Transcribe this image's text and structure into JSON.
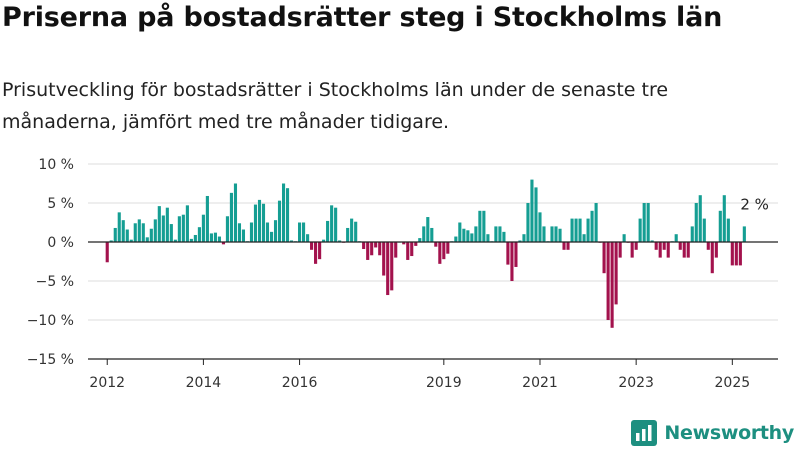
{
  "title": "Priserna på bostadsrätter steg i Stockholms län",
  "subtitle": "Prisutveckling för bostadsrätter i Stockholms län under de senaste tre månaderna, jämfört med tre månader tidigare.",
  "brand": {
    "name": "Newsworthy",
    "logo_icon": "bar-chart-logo-icon"
  },
  "colors": {
    "positive": "#159e93",
    "negative": "#a3124d",
    "grid": "#dddddd",
    "axis": "#222222",
    "brand": "#1d8f80"
  },
  "chart_data": {
    "type": "bar",
    "x_ticks": [
      {
        "x": 2012,
        "label": "2012"
      },
      {
        "x": 2014,
        "label": "2014"
      },
      {
        "x": 2016,
        "label": "2016"
      },
      {
        "x": 2019,
        "label": "2019"
      },
      {
        "x": 2021,
        "label": "2021"
      },
      {
        "x": 2023,
        "label": "2023"
      },
      {
        "x": 2025,
        "label": "2025"
      }
    ],
    "y_ticks": [
      {
        "v": 10,
        "label": "10 %"
      },
      {
        "v": 5,
        "label": "5 %"
      },
      {
        "v": 0,
        "label": "0 %"
      },
      {
        "v": -5,
        "label": "−5 %"
      },
      {
        "v": -10,
        "label": "−10 %"
      },
      {
        "v": -15,
        "label": "−15 %"
      }
    ],
    "ylim": [
      -15,
      10
    ],
    "xlim": [
      2011.6,
      2025.95
    ],
    "grid": true,
    "annotation": {
      "x": 2025.25,
      "y": 2,
      "label": "2 %"
    },
    "x": [
      2012,
      2012.083,
      2012.167,
      2012.25,
      2012.333,
      2012.417,
      2012.5,
      2012.583,
      2012.667,
      2012.75,
      2012.833,
      2012.917,
      2013,
      2013.083,
      2013.167,
      2013.25,
      2013.333,
      2013.417,
      2013.5,
      2013.583,
      2013.667,
      2013.75,
      2013.833,
      2013.917,
      2014,
      2014.083,
      2014.167,
      2014.25,
      2014.333,
      2014.417,
      2014.5,
      2014.583,
      2014.667,
      2014.75,
      2014.833,
      2014.917,
      2015,
      2015.083,
      2015.167,
      2015.25,
      2015.333,
      2015.417,
      2015.5,
      2015.583,
      2015.667,
      2015.75,
      2015.833,
      2015.917,
      2016,
      2016.083,
      2016.167,
      2016.25,
      2016.333,
      2016.417,
      2016.5,
      2016.583,
      2016.667,
      2016.75,
      2016.833,
      2016.917,
      2017,
      2017.083,
      2017.167,
      2017.25,
      2017.333,
      2017.417,
      2017.5,
      2017.583,
      2017.667,
      2017.75,
      2017.833,
      2017.917,
      2018,
      2018.083,
      2018.167,
      2018.25,
      2018.333,
      2018.417,
      2018.5,
      2018.583,
      2018.667,
      2018.75,
      2018.833,
      2018.917,
      2019,
      2019.083,
      2019.167,
      2019.25,
      2019.333,
      2019.417,
      2019.5,
      2019.583,
      2019.667,
      2019.75,
      2019.833,
      2019.917,
      2020,
      2020.083,
      2020.167,
      2020.25,
      2020.333,
      2020.417,
      2020.5,
      2020.583,
      2020.667,
      2020.75,
      2020.833,
      2020.917,
      2021,
      2021.083,
      2021.167,
      2021.25,
      2021.333,
      2021.417,
      2021.5,
      2021.583,
      2021.667,
      2021.75,
      2021.833,
      2021.917,
      2022,
      2022.083,
      2022.167,
      2022.25,
      2022.333,
      2022.417,
      2022.5,
      2022.583,
      2022.667,
      2022.75,
      2022.833,
      2022.917,
      2023,
      2023.083,
      2023.167,
      2023.25,
      2023.333,
      2023.417,
      2023.5,
      2023.583,
      2023.667,
      2023.75,
      2023.833,
      2023.917,
      2024,
      2024.083,
      2024.167,
      2024.25,
      2024.333,
      2024.417,
      2024.5,
      2024.583,
      2024.667,
      2024.75,
      2024.833,
      2024.917,
      2025,
      2025.083,
      2025.167,
      2025.25
    ],
    "values": [
      -2.6,
      0.2,
      1.8,
      3.8,
      2.8,
      1.6,
      0.3,
      2.4,
      2.9,
      2.4,
      0.6,
      1.7,
      2.9,
      4.6,
      3.4,
      4.4,
      2.3,
      0.3,
      3.3,
      3.5,
      4.7,
      0.4,
      0.9,
      1.9,
      3.5,
      5.9,
      1.1,
      1.2,
      0.7,
      -0.3,
      3.3,
      6.3,
      7.5,
      2.4,
      1.6,
      0.1,
      2.5,
      4.8,
      5.4,
      4.9,
      2.5,
      1.3,
      2.8,
      5.3,
      7.5,
      6.9,
      0.2,
      0.1,
      2.5,
      2.5,
      1.0,
      -1.0,
      -2.8,
      -2.2,
      0.3,
      2.7,
      4.7,
      4.4,
      0.2,
      -0.1,
      1.8,
      3.0,
      2.6,
      0.1,
      -0.9,
      -2.3,
      -1.7,
      -0.7,
      -1.7,
      -4.3,
      -6.8,
      -6.2,
      -2.0,
      0.0,
      -0.3,
      -2.3,
      -1.8,
      -0.5,
      0.5,
      2.0,
      3.2,
      1.8,
      -0.6,
      -2.8,
      -2.2,
      -1.5,
      0.1,
      0.7,
      2.5,
      1.7,
      1.5,
      1.1,
      2.0,
      4.0,
      4.0,
      1.0,
      0.1,
      2.0,
      2.0,
      1.3,
      -2.9,
      -5.0,
      -3.2,
      0.2,
      1.0,
      5.0,
      8.0,
      7.0,
      3.8,
      2.0,
      0.1,
      2.0,
      2.0,
      1.7,
      -1.0,
      -1.0,
      3.0,
      3.0,
      3.0,
      1.0,
      3.0,
      4.0,
      5.0,
      -0.1,
      -4.0,
      -10.0,
      -11.0,
      -8.0,
      -2.0,
      1.0,
      -0.1,
      -2.0,
      -1.0,
      3.0,
      5.0,
      5.0,
      0.2,
      -1.0,
      -2.0,
      -1.0,
      -2.0,
      0.1,
      1.0,
      -1.0,
      -2.0,
      -2.0,
      2.0,
      5.0,
      6.0,
      3.0,
      -1.0,
      -4.0,
      -2.0,
      4.0,
      6.0,
      3.0,
      -3.0,
      -3.0,
      -3.0,
      2.0
    ]
  }
}
